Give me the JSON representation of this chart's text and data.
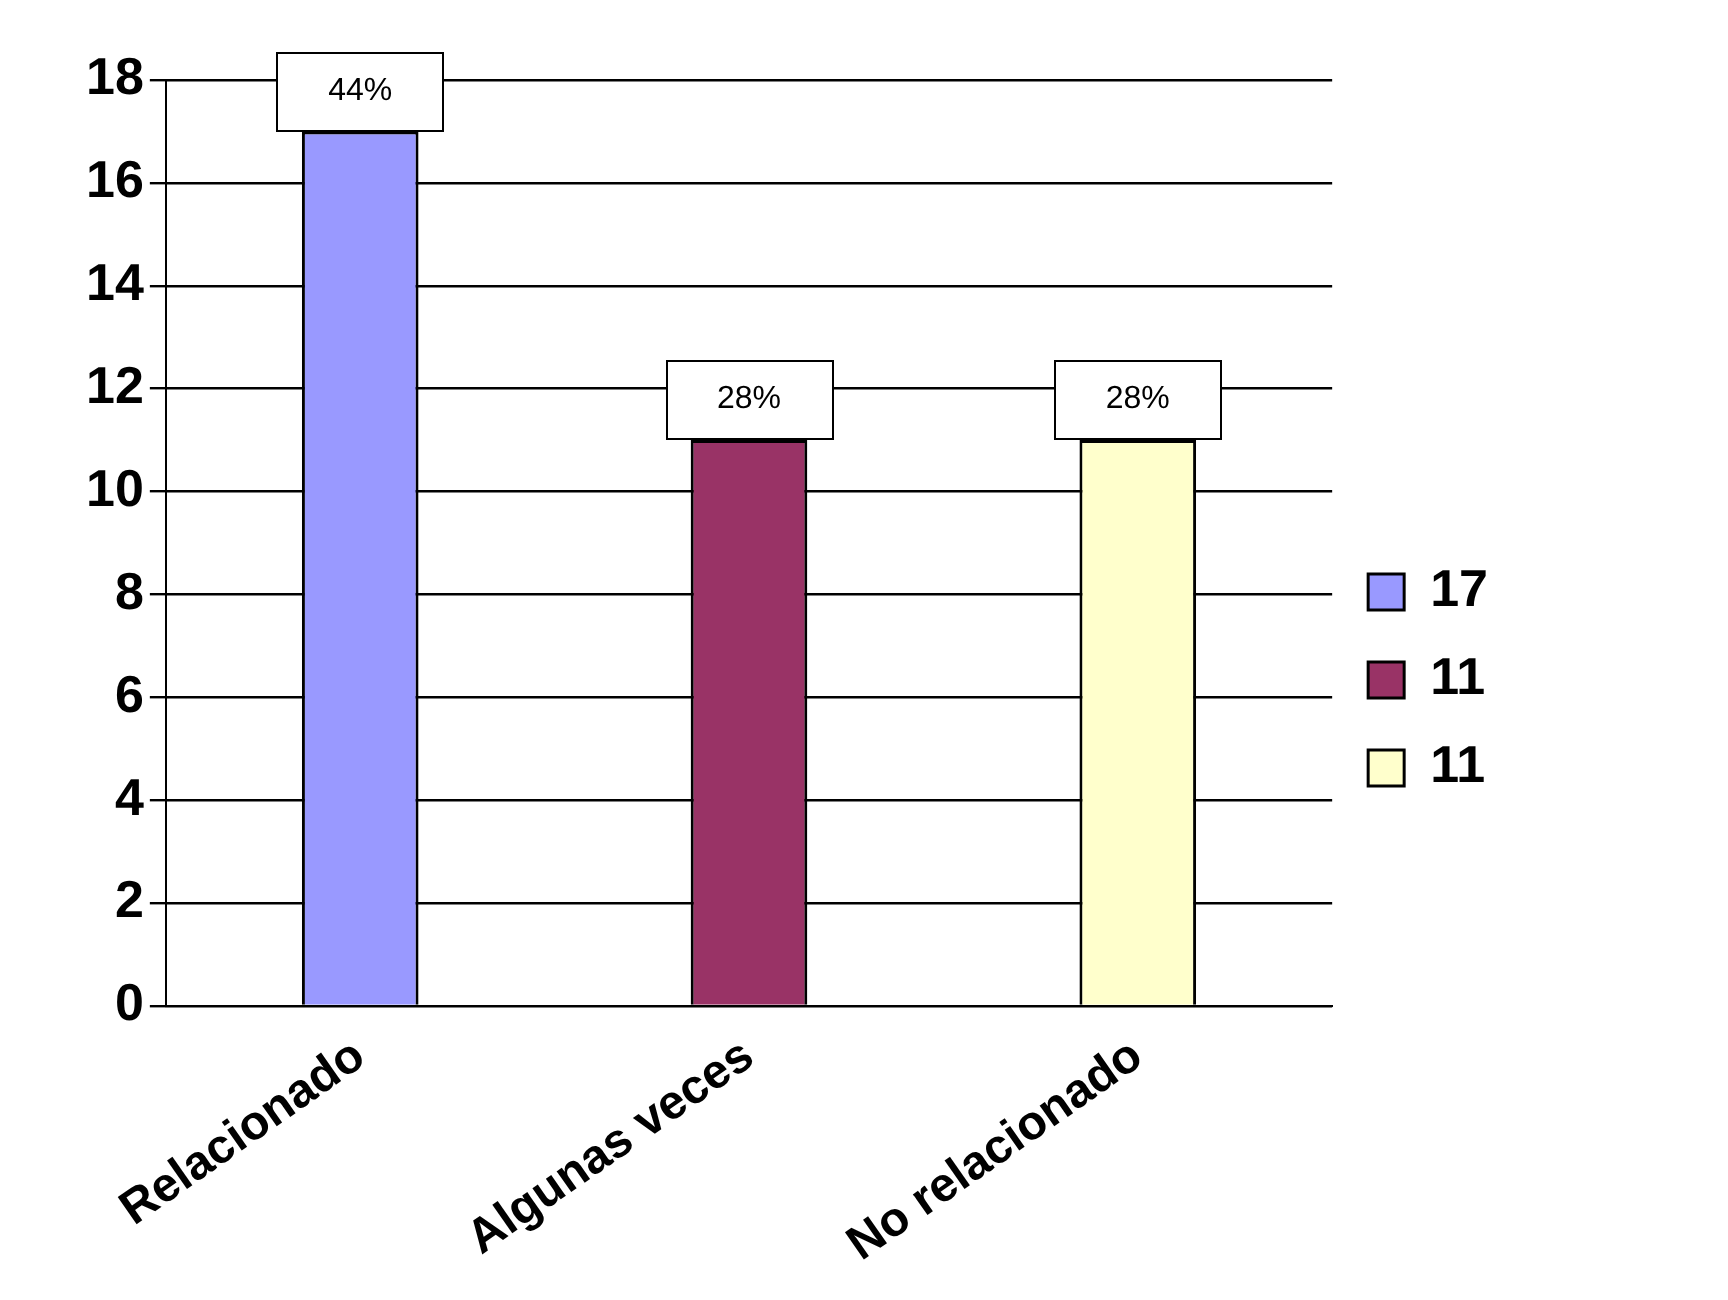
{
  "chart_data": {
    "type": "bar",
    "categories": [
      "Relacionado",
      "Algunas veces",
      "No relacionado"
    ],
    "series": [
      {
        "name": "17",
        "color": "#9999ff",
        "values": [
          17,
          null,
          null
        ]
      },
      {
        "name": "11",
        "color": "#993366",
        "values": [
          null,
          11,
          null
        ]
      },
      {
        "name": "11",
        "color": "#ffffcc",
        "values": [
          null,
          null,
          11
        ]
      }
    ],
    "annotations": [
      {
        "text": "44%",
        "x": "Relacionado",
        "y": 17
      },
      {
        "text": "28%",
        "x": "Algunas veces",
        "y": 11
      },
      {
        "text": "28%",
        "x": "No relacionado",
        "y": 11
      }
    ],
    "ylim": [
      0,
      18
    ],
    "yticks": [
      0,
      2,
      4,
      6,
      8,
      10,
      12,
      14,
      16,
      18
    ],
    "grid": "y",
    "legend": "right"
  }
}
